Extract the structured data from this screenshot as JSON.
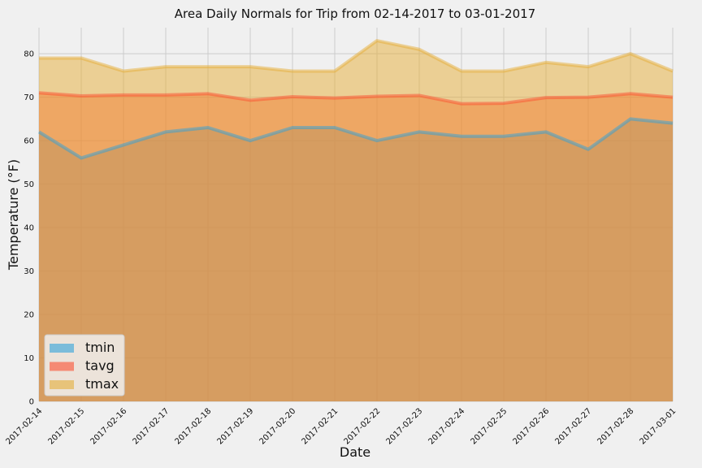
{
  "chart_data": {
    "type": "area",
    "title": "Area Daily Normals for Trip from 02-14-2017 to 03-01-2017",
    "xlabel": "Date",
    "ylabel": "Temperature (°F)",
    "x": [
      "2017-02-14",
      "2017-02-15",
      "2017-02-16",
      "2017-02-17",
      "2017-02-18",
      "2017-02-19",
      "2017-02-20",
      "2017-02-21",
      "2017-02-22",
      "2017-02-23",
      "2017-02-24",
      "2017-02-25",
      "2017-02-26",
      "2017-02-27",
      "2017-02-28",
      "2017-03-01"
    ],
    "ylim": [
      0,
      86
    ],
    "yticks": [
      "0",
      "10",
      "20",
      "30",
      "40",
      "50",
      "60",
      "70",
      "80"
    ],
    "grid": true,
    "stacked": false,
    "legend_position": "lower-left",
    "series": [
      {
        "name": "tmin",
        "color": "#30a2da",
        "values": [
          62,
          56,
          59,
          62,
          63,
          60,
          63,
          63,
          60,
          62,
          61,
          61,
          62,
          58,
          65,
          64
        ]
      },
      {
        "name": "tavg",
        "color": "#fc4f30",
        "values": [
          71,
          70.3,
          70.5,
          70.5,
          70.8,
          69.3,
          70.1,
          69.8,
          70.2,
          70.4,
          68.5,
          68.6,
          69.9,
          70,
          70.8,
          70
        ]
      },
      {
        "name": "tmax",
        "color": "#e5ae38",
        "values": [
          79,
          79,
          76,
          77,
          77,
          77,
          76,
          76,
          83,
          81,
          76,
          76,
          78,
          77,
          80,
          76
        ]
      }
    ]
  }
}
